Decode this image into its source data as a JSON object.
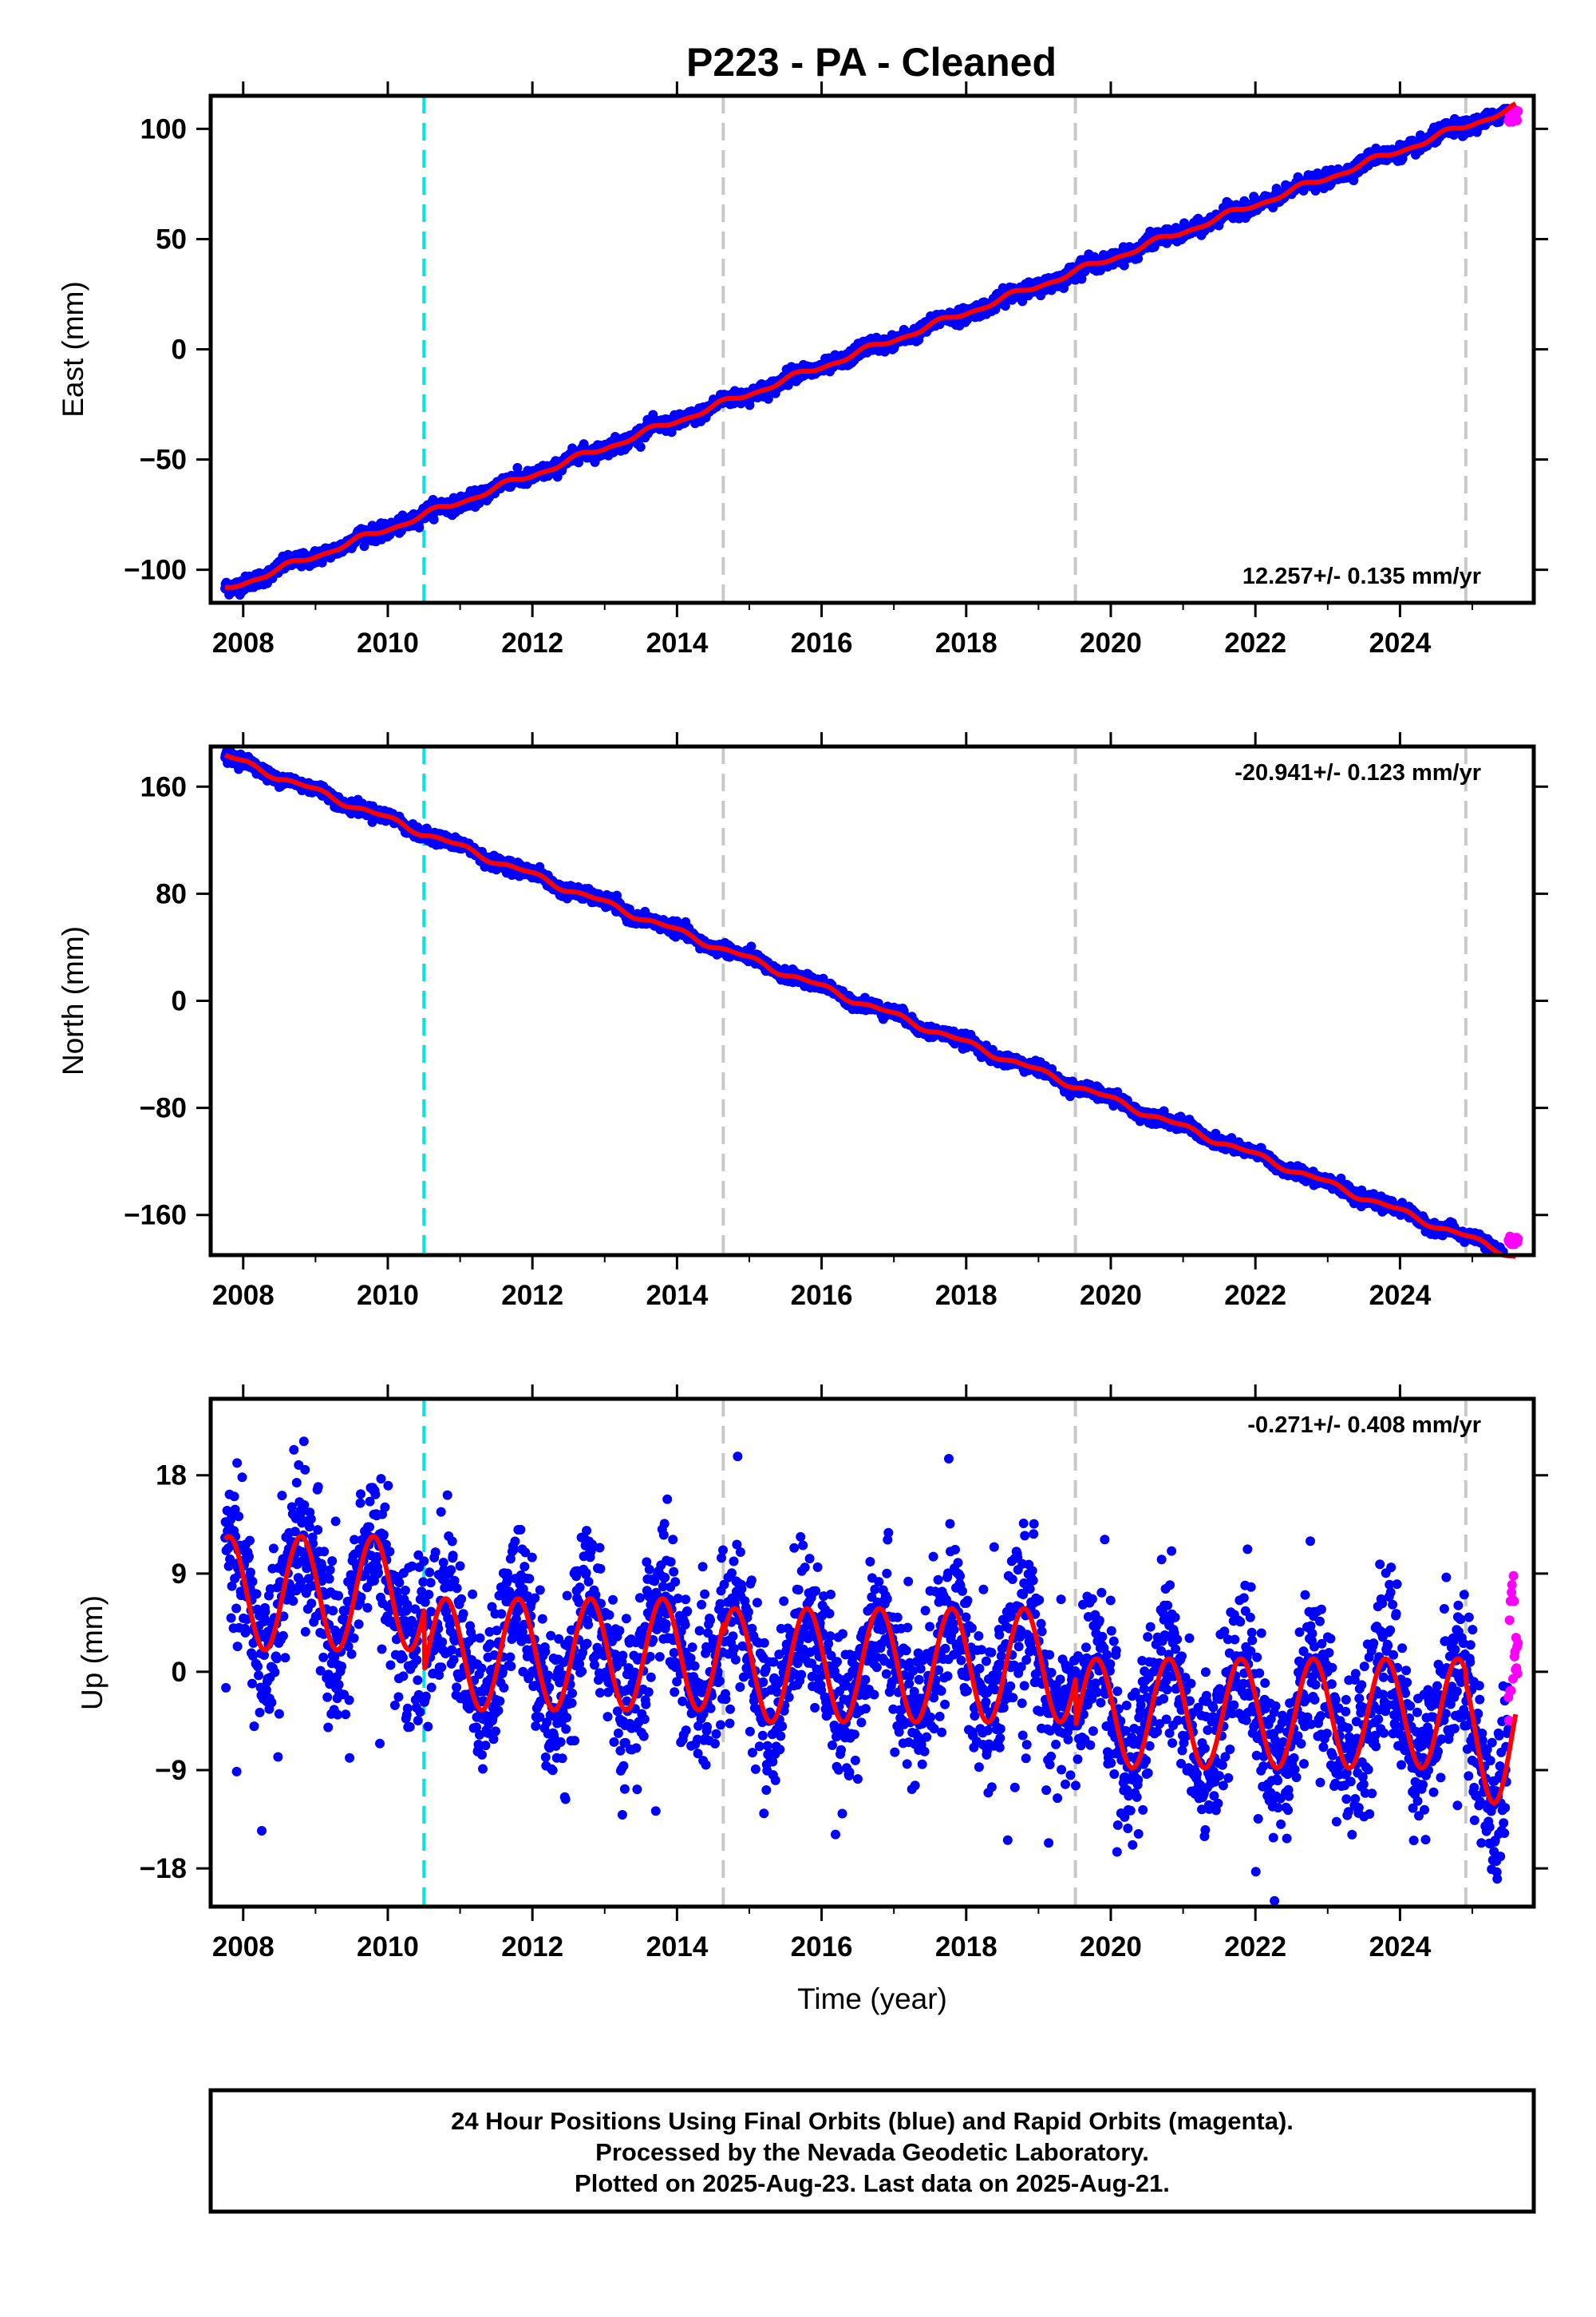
{
  "title": "P223  - PA - Cleaned",
  "colors": {
    "final_points": "#0000ff",
    "rapid_points": "#ff00ff",
    "model_line": "#ff0000",
    "equipment_change": "#00e5e5",
    "other_offset": "#c8c8c8"
  },
  "footer": {
    "line1": "24 Hour Positions Using Final Orbits (blue) and Rapid Orbits (magenta).",
    "line2": "Processed by the Nevada Geodetic Laboratory.",
    "line3": "Plotted on 2025-Aug-23. Last data on 2025-Aug-21."
  },
  "chart_data": [
    {
      "type": "scatter",
      "component": "east",
      "ylabel": "East (mm)",
      "xlabel": "",
      "rate_label": "12.257+/- 0.135 mm/yr",
      "xlim": [
        2007.55,
        2025.85
      ],
      "ylim": [
        -115,
        115
      ],
      "x_ticks": [
        2008,
        2010,
        2012,
        2014,
        2016,
        2018,
        2020,
        2022,
        2024
      ],
      "y_ticks": [
        -100,
        -50,
        0,
        50,
        100
      ],
      "y_tick_labels": [
        "−100",
        "−50",
        "0",
        "50",
        "100"
      ],
      "cyan_offsets": [
        2010.5
      ],
      "gray_offsets": [
        2014.64,
        2019.51,
        2024.91
      ],
      "model": {
        "start": 2007.75,
        "end": 2025.6,
        "value_at_start": -109,
        "rate": 12.257,
        "annual_amp": 1.2,
        "annual_phase": 0.6,
        "semiannual_amp": 0.6
      },
      "scatter": {
        "start": 2007.75,
        "end": 2025.5,
        "step": 0.0055,
        "noise": 1.6
      },
      "rapid": {
        "start": 2025.5,
        "end": 2025.64,
        "values_min": 103,
        "values_max": 109
      }
    },
    {
      "type": "scatter",
      "component": "north",
      "ylabel": "North (mm)",
      "xlabel": "",
      "rate_label": "-20.941+/- 0.123 mm/yr",
      "xlim": [
        2007.55,
        2025.85
      ],
      "ylim": [
        -190,
        190
      ],
      "x_ticks": [
        2008,
        2010,
        2012,
        2014,
        2016,
        2018,
        2020,
        2022,
        2024
      ],
      "y_ticks": [
        -160,
        -80,
        0,
        80,
        160
      ],
      "y_tick_labels": [
        "−160",
        "−80",
        "0",
        "80",
        "160"
      ],
      "cyan_offsets": [
        2010.5
      ],
      "gray_offsets": [
        2014.64,
        2019.51,
        2024.91
      ],
      "model": {
        "start": 2007.75,
        "end": 2025.6,
        "value_at_start": 183,
        "rate": -20.941,
        "annual_amp": 2.0,
        "annual_phase": 0.3,
        "semiannual_amp": 1.0
      },
      "scatter": {
        "start": 2007.75,
        "end": 2025.5,
        "step": 0.0055,
        "noise": 2.2
      },
      "rapid": {
        "start": 2025.5,
        "end": 2025.64,
        "values_min": -182,
        "values_max": -176
      }
    },
    {
      "type": "scatter",
      "component": "up",
      "ylabel": "Up (mm)",
      "xlabel": "Time (year)",
      "rate_label": "-0.271+/- 0.408 mm/yr",
      "xlim": [
        2007.55,
        2025.85
      ],
      "ylim": [
        -21.5,
        25
      ],
      "x_ticks": [
        2008,
        2010,
        2012,
        2014,
        2016,
        2018,
        2020,
        2022,
        2024
      ],
      "y_ticks": [
        -18,
        -9,
        0,
        9,
        18
      ],
      "y_tick_labels": [
        "−18",
        "−9",
        "0",
        "9",
        "18"
      ],
      "cyan_offsets": [
        2010.5
      ],
      "gray_offsets": [
        2014.64,
        2019.51,
        2024.91
      ],
      "model": {
        "start": 2007.75,
        "end": 2025.6,
        "segments": [
          {
            "from": 2007.75,
            "to": 2010.5,
            "mean": 7.2,
            "amp": 5.2
          },
          {
            "from": 2010.5,
            "to": 2014.64,
            "mean": 1.6,
            "amp": 5.1
          },
          {
            "from": 2014.64,
            "to": 2019.51,
            "mean": 0.6,
            "amp": 5.2
          },
          {
            "from": 2019.51,
            "to": 2024.91,
            "mean": -3.8,
            "amp": 5.0
          },
          {
            "from": 2024.91,
            "to": 2025.6,
            "mean": -5.8,
            "amp": 6.2
          }
        ],
        "phase_peak": 0.8
      },
      "scatter": {
        "start": 2007.75,
        "end": 2025.5,
        "step": 0.0055,
        "noise": 3.4
      },
      "rapid": {
        "start": 2025.5,
        "end": 2025.64,
        "values_min": -4.5,
        "values_max": 9
      }
    }
  ]
}
